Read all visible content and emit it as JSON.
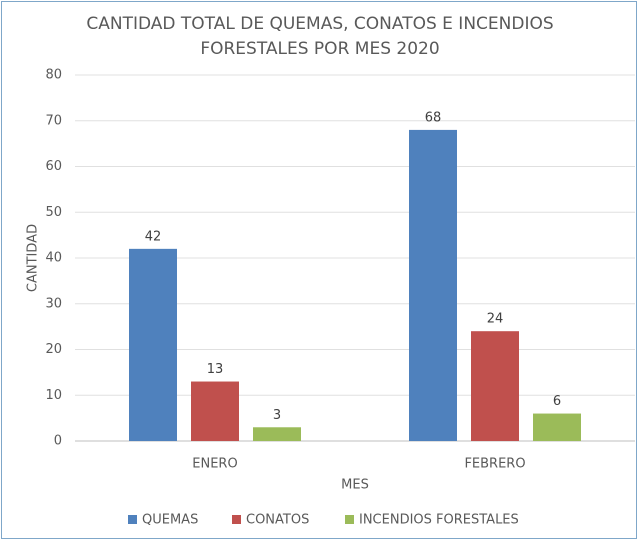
{
  "chart_data": {
    "type": "bar",
    "title": "CANTIDAD TOTAL DE QUEMAS, CONATOS E INCENDIOS FORESTALES POR MES 2020",
    "x_label": "MES",
    "y_label": "CANTIDAD",
    "categories": [
      "ENERO",
      "FEBRERO"
    ],
    "series": [
      {
        "name": "QUEMAS",
        "color": "#4f81bd",
        "values": [
          42,
          68
        ]
      },
      {
        "name": "CONATOS",
        "color": "#c0504d",
        "values": [
          13,
          24
        ]
      },
      {
        "name": "INCENDIOS FORESTALES",
        "color": "#9bbb59",
        "values": [
          3,
          6
        ]
      }
    ],
    "ylim": [
      0,
      80
    ],
    "yticks": [
      0,
      10,
      20,
      30,
      40,
      50,
      60,
      70,
      80
    ],
    "grid": true,
    "legend": "bottom"
  }
}
